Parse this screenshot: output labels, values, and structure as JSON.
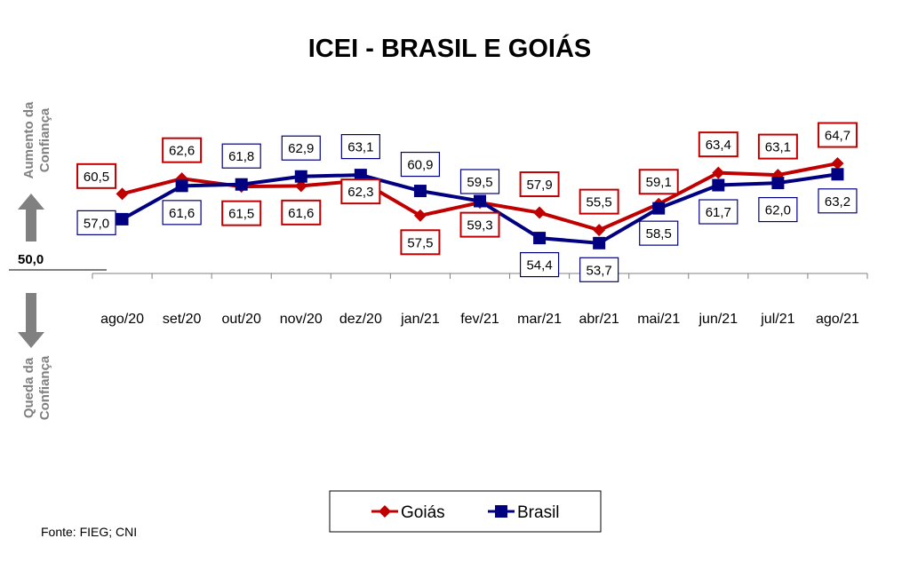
{
  "chart_data": {
    "type": "line",
    "title": "ICEI - BRASIL E GOIÁS",
    "categories": [
      "ago/20",
      "set/20",
      "out/20",
      "nov/20",
      "dez/20",
      "jan/21",
      "fev/21",
      "mar/21",
      "abr/21",
      "mai/21",
      "jun/21",
      "jul/21",
      "ago/21"
    ],
    "series": [
      {
        "name": "Goiás",
        "color": "#C00000",
        "marker": "diamond",
        "values": [
          60.5,
          62.6,
          61.5,
          61.6,
          62.3,
          57.5,
          59.3,
          57.9,
          55.5,
          59.1,
          63.4,
          63.1,
          64.7
        ],
        "labels": [
          "60,5",
          "62,6",
          "61,5",
          "61,6",
          "62,3",
          "57,5",
          "59,3",
          "57,9",
          "55,5",
          "59,1",
          "63,4",
          "63,1",
          "64,7"
        ]
      },
      {
        "name": "Brasil",
        "color": "#000080",
        "marker": "square",
        "values": [
          57.0,
          61.6,
          61.8,
          62.9,
          63.1,
          60.9,
          59.5,
          54.4,
          53.7,
          58.5,
          61.7,
          62.0,
          63.2
        ],
        "labels": [
          "57,0",
          "61,6",
          "61,8",
          "62,9",
          "63,1",
          "60,9",
          "59,5",
          "54,4",
          "53,7",
          "58,5",
          "61,7",
          "62,0",
          "63,2"
        ]
      }
    ],
    "reference_line": {
      "value": 50,
      "label": "50,0"
    },
    "up_label": [
      "Aumento da",
      "Confiança"
    ],
    "down_label": [
      "Queda da",
      "Confiança"
    ],
    "legend_position": "bottom-center",
    "grid": false
  },
  "source": "Fonte: FIEG; CNI"
}
